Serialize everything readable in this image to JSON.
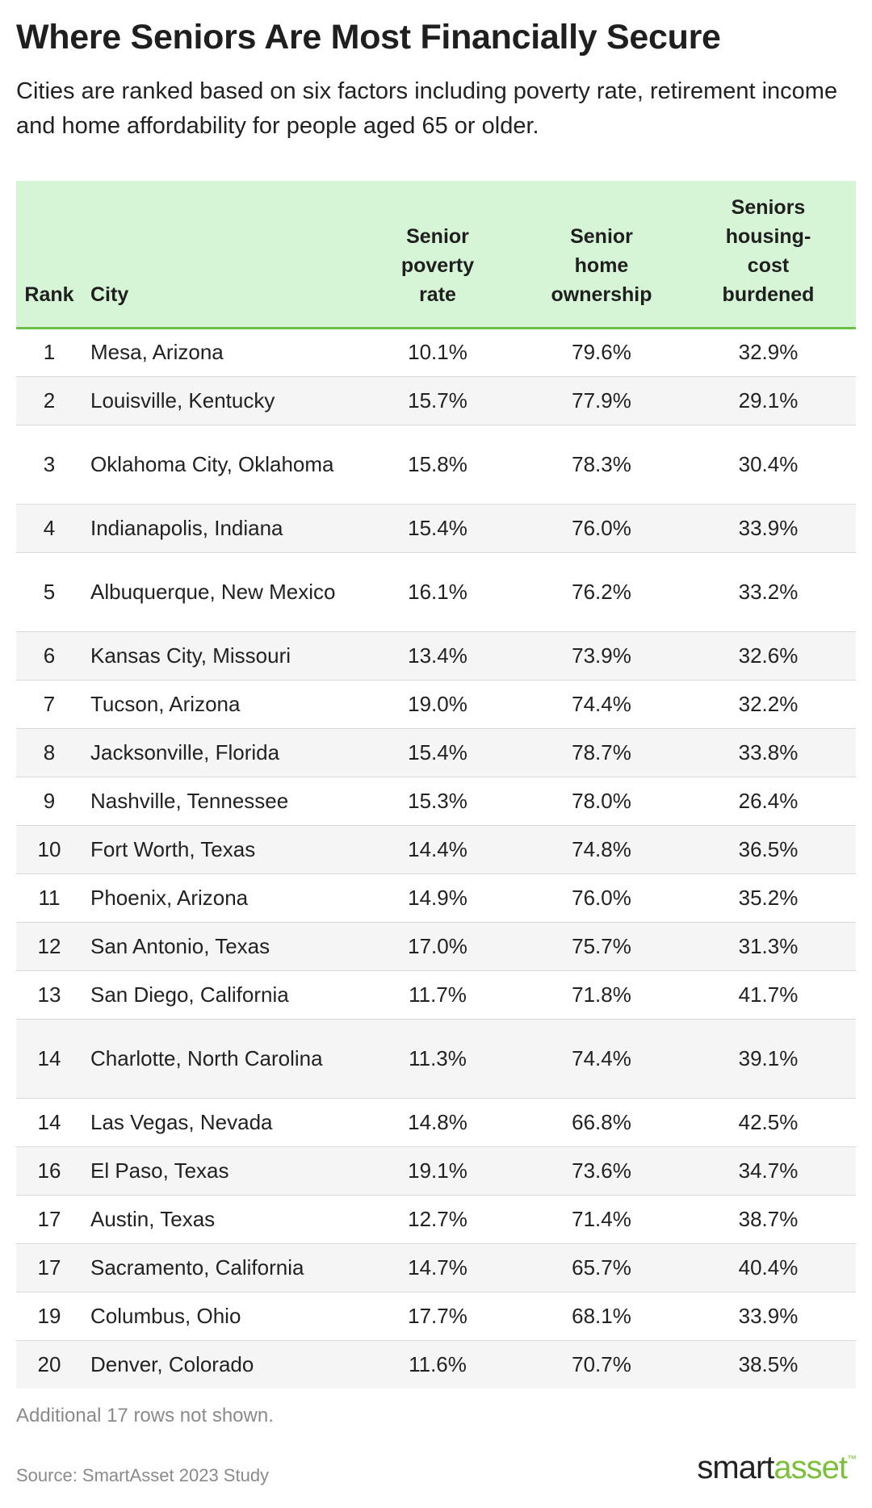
{
  "title": "Where Seniors Are Most Financially Secure",
  "subtitle": "Cities are ranked based on six factors including poverty rate, retirement income and home affordability for people aged 65 or older.",
  "table": {
    "columns": {
      "rank": "Rank",
      "city": "City",
      "poverty": [
        "Senior",
        "poverty",
        "rate"
      ],
      "ownership": [
        "Senior",
        "home",
        "ownership"
      ],
      "burdened": [
        "Seniors",
        "housing-",
        "cost",
        "burdened"
      ]
    },
    "rows": [
      {
        "rank": "1",
        "city": "Mesa, Arizona",
        "poverty": "10.1%",
        "ownership": "79.6%",
        "burdened": "32.9%"
      },
      {
        "rank": "2",
        "city": "Louisville, Kentucky",
        "poverty": "15.7%",
        "ownership": "77.9%",
        "burdened": "29.1%"
      },
      {
        "rank": "3",
        "city": "Oklahoma City, Oklahoma",
        "poverty": "15.8%",
        "ownership": "78.3%",
        "burdened": "30.4%"
      },
      {
        "rank": "4",
        "city": "Indianapolis, Indiana",
        "poverty": "15.4%",
        "ownership": "76.0%",
        "burdened": "33.9%"
      },
      {
        "rank": "5",
        "city": "Albuquerque, New Mexico",
        "poverty": "16.1%",
        "ownership": "76.2%",
        "burdened": "33.2%"
      },
      {
        "rank": "6",
        "city": "Kansas City, Missouri",
        "poverty": "13.4%",
        "ownership": "73.9%",
        "burdened": "32.6%"
      },
      {
        "rank": "7",
        "city": "Tucson, Arizona",
        "poverty": "19.0%",
        "ownership": "74.4%",
        "burdened": "32.2%"
      },
      {
        "rank": "8",
        "city": "Jacksonville, Florida",
        "poverty": "15.4%",
        "ownership": "78.7%",
        "burdened": "33.8%"
      },
      {
        "rank": "9",
        "city": "Nashville, Tennessee",
        "poverty": "15.3%",
        "ownership": "78.0%",
        "burdened": "26.4%"
      },
      {
        "rank": "10",
        "city": "Fort Worth, Texas",
        "poverty": "14.4%",
        "ownership": "74.8%",
        "burdened": "36.5%"
      },
      {
        "rank": "11",
        "city": "Phoenix, Arizona",
        "poverty": "14.9%",
        "ownership": "76.0%",
        "burdened": "35.2%"
      },
      {
        "rank": "12",
        "city": "San Antonio, Texas",
        "poverty": "17.0%",
        "ownership": "75.7%",
        "burdened": "31.3%"
      },
      {
        "rank": "13",
        "city": "San Diego, California",
        "poverty": "11.7%",
        "ownership": "71.8%",
        "burdened": "41.7%"
      },
      {
        "rank": "14",
        "city": "Charlotte, North Carolina",
        "poverty": "11.3%",
        "ownership": "74.4%",
        "burdened": "39.1%"
      },
      {
        "rank": "14",
        "city": "Las Vegas, Nevada",
        "poverty": "14.8%",
        "ownership": "66.8%",
        "burdened": "42.5%"
      },
      {
        "rank": "16",
        "city": "El Paso, Texas",
        "poverty": "19.1%",
        "ownership": "73.6%",
        "burdened": "34.7%"
      },
      {
        "rank": "17",
        "city": "Austin, Texas",
        "poverty": "12.7%",
        "ownership": "71.4%",
        "burdened": "38.7%"
      },
      {
        "rank": "17",
        "city": "Sacramento, California",
        "poverty": "14.7%",
        "ownership": "65.7%",
        "burdened": "40.4%"
      },
      {
        "rank": "19",
        "city": "Columbus, Ohio",
        "poverty": "17.7%",
        "ownership": "68.1%",
        "burdened": "33.9%"
      },
      {
        "rank": "20",
        "city": "Denver, Colorado",
        "poverty": "11.6%",
        "ownership": "70.7%",
        "burdened": "38.5%"
      }
    ]
  },
  "note": "Additional 17 rows not shown.",
  "source": "Source: SmartAsset 2023 Study",
  "logo": {
    "part1": "smart",
    "part2": "asset",
    "tm": "™"
  },
  "colors": {
    "header_bg": "#d6f5d6",
    "header_rule": "#6cc04a",
    "logo_green": "#7bbf3a",
    "muted_text": "#8a8a8a"
  }
}
